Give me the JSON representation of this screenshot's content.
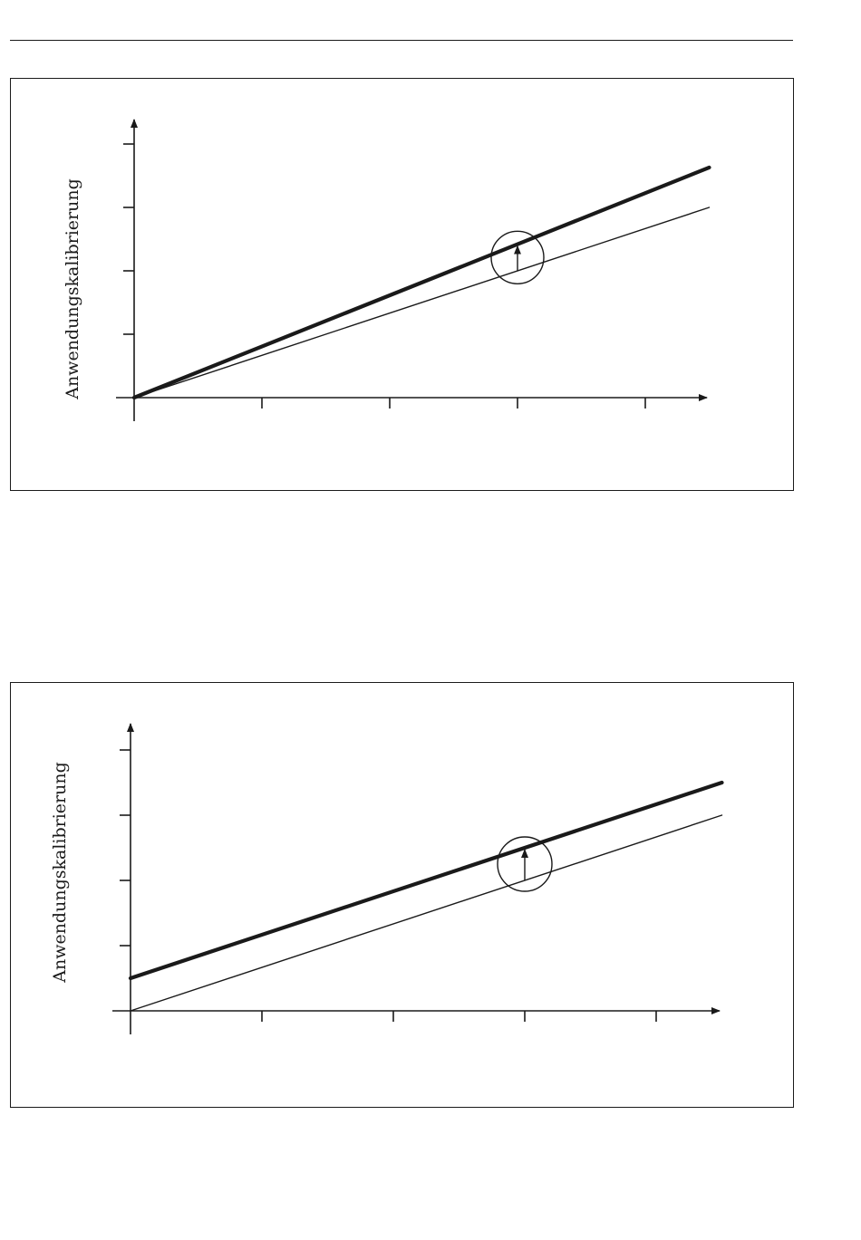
{
  "figures": [
    {
      "ylabel": "Anwendungskalibrierung",
      "series": [
        {
          "role": "reference",
          "x": [
            0,
            4.5
          ],
          "y": [
            0,
            3.0
          ]
        },
        {
          "role": "adjusted",
          "x": [
            0,
            4.5
          ],
          "y": [
            0,
            3.63
          ]
        }
      ],
      "x_ticks": [
        1,
        2,
        3,
        4
      ],
      "y_ticks": [
        1,
        2,
        3,
        4
      ],
      "highlight_x": 3,
      "adjustment_type": "slope"
    },
    {
      "ylabel": "Anwendungskalibrierung",
      "series": [
        {
          "role": "reference",
          "x": [
            0,
            4.5
          ],
          "y": [
            0,
            3.0
          ]
        },
        {
          "role": "adjusted",
          "x": [
            0,
            4.5
          ],
          "y": [
            0.5,
            3.5
          ]
        }
      ],
      "x_ticks": [
        1,
        2,
        3,
        4
      ],
      "y_ticks": [
        1,
        2,
        3,
        4
      ],
      "highlight_x": 3,
      "adjustment_type": "offset"
    }
  ],
  "colors": {
    "line": "#1a1a1a"
  }
}
